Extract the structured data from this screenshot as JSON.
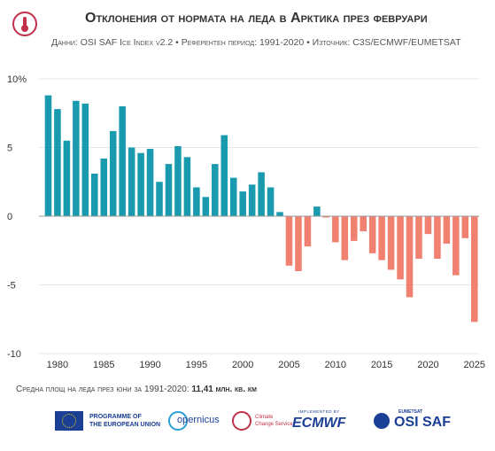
{
  "header": {
    "title": "Отклонения от нормата на леда в Арктика през февруари",
    "subtitle": "Данни: OSI SAF Ice Index v2.2 • Референтен период: 1991-2020 • Източник: C3S/ECMWF/EUMETSAT"
  },
  "note": {
    "label": "Средна площ на леда през юни за 1991-2020: ",
    "value": "11,41 млн. кв. км"
  },
  "footer": {
    "eu_text_1": "PROGRAMME OF",
    "eu_text_2": "THE EUROPEAN UNION",
    "copernicus": "opernicus",
    "c3s_1": "Climate",
    "c3s_2": "Change Service",
    "ecmwf_small": "IMPLEMENTED BY",
    "ecmwf": "ECMWF",
    "osi_small": "EUMETSAT",
    "osi": "OSI SAF"
  },
  "colors": {
    "positive": "#1a9aae",
    "negative": "#f08070",
    "zero_line": "#999999",
    "grid": "#e6e6e6",
    "text": "#333333"
  },
  "chart_data": {
    "type": "bar",
    "ylim": [
      -10,
      10
    ],
    "xlim": [
      1978,
      2025.5
    ],
    "y_ticks": [
      10,
      5,
      0,
      -5,
      -10
    ],
    "y_tick_labels": [
      "10%",
      "5",
      "0",
      "-5",
      "-10"
    ],
    "x_ticks": [
      1980,
      1985,
      1990,
      1995,
      2000,
      2005,
      2010,
      2015,
      2020,
      2025
    ],
    "x_tick_labels": [
      "1980",
      "1985",
      "1990",
      "1995",
      "2000",
      "2005",
      "2010",
      "2015",
      "2020",
      "2025"
    ],
    "grid": "horizontal",
    "years": [
      1979,
      1980,
      1981,
      1982,
      1983,
      1984,
      1985,
      1986,
      1987,
      1988,
      1989,
      1990,
      1991,
      1992,
      1993,
      1994,
      1995,
      1996,
      1997,
      1998,
      1999,
      2000,
      2001,
      2002,
      2003,
      2004,
      2005,
      2006,
      2007,
      2008,
      2009,
      2010,
      2011,
      2012,
      2013,
      2014,
      2015,
      2016,
      2017,
      2018,
      2019,
      2020,
      2021,
      2022,
      2023,
      2024,
      2025
    ],
    "values": [
      8.8,
      7.8,
      5.5,
      8.4,
      8.2,
      3.1,
      4.2,
      6.2,
      8.0,
      5.0,
      4.6,
      4.9,
      2.5,
      3.8,
      5.1,
      4.3,
      2.1,
      1.4,
      3.8,
      5.9,
      2.8,
      1.8,
      2.3,
      3.2,
      2.1,
      0.3,
      -3.6,
      -4.0,
      -2.2,
      0.7,
      -0.1,
      -1.9,
      -3.2,
      -1.8,
      -1.1,
      -2.7,
      -3.2,
      -3.9,
      -4.6,
      -5.9,
      -3.1,
      -1.3,
      -3.1,
      -2.0,
      -4.3,
      -1.6,
      -7.7
    ]
  }
}
